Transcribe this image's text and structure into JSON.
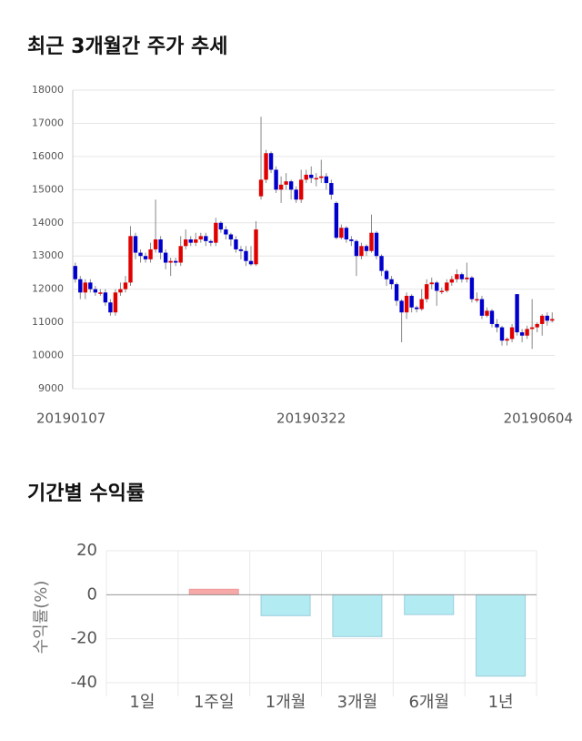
{
  "chart_data": [
    {
      "type": "candlestick",
      "title": "최근 3개월간 주가 추세",
      "categories": [
        "20190107",
        null,
        null,
        null,
        null,
        null,
        null,
        null,
        null,
        null,
        null,
        null,
        null,
        null,
        null,
        null,
        null,
        null,
        null,
        null,
        null,
        null,
        null,
        null,
        null,
        null,
        null,
        null,
        null,
        null,
        null,
        null,
        null,
        null,
        null,
        null,
        null,
        null,
        null,
        null,
        null,
        null,
        null,
        null,
        null,
        null,
        null,
        "20190322",
        null,
        null,
        null,
        null,
        null,
        null,
        null,
        null,
        null,
        null,
        null,
        null,
        null,
        null,
        null,
        null,
        null,
        null,
        null,
        null,
        null,
        null,
        null,
        null,
        null,
        null,
        null,
        null,
        null,
        null,
        null,
        null,
        null,
        null,
        null,
        null,
        null,
        null,
        null,
        null,
        null,
        null,
        null,
        null,
        null,
        null,
        null,
        "20190604"
      ],
      "open": [
        12700,
        12300,
        11900,
        12200,
        12000,
        11900,
        11900,
        11600,
        11300,
        11900,
        12000,
        12200,
        13600,
        13100,
        13000,
        12900,
        13200,
        13500,
        13100,
        12800,
        12850,
        12800,
        13300,
        13500,
        13400,
        13500,
        13600,
        13450,
        13400,
        14000,
        13800,
        13650,
        13500,
        13200,
        13150,
        12850,
        12750,
        14800,
        15300,
        16100,
        15600,
        15000,
        15150,
        15250,
        15000,
        14700,
        15300,
        15450,
        15350,
        15350,
        15400,
        15200,
        14600,
        13550,
        13850,
        13500,
        13450,
        13000,
        13300,
        13150,
        13700,
        13000,
        12550,
        12300,
        12150,
        11650,
        11300,
        11800,
        11450,
        11400,
        11700,
        12150,
        12200,
        11950,
        11950,
        12200,
        12300,
        12450,
        12300,
        12350,
        11700,
        11700,
        11200,
        11350,
        10950,
        10850,
        10450,
        10500,
        11850,
        10700,
        10600,
        10800,
        10850,
        10950,
        11200,
        11050
      ],
      "high": [
        12800,
        12400,
        12300,
        12300,
        12100,
        12000,
        12000,
        11700,
        12000,
        12200,
        12400,
        13900,
        13700,
        13200,
        13100,
        13400,
        14700,
        13600,
        13200,
        12950,
        12950,
        13600,
        13800,
        13600,
        13700,
        13700,
        13700,
        13500,
        14150,
        14050,
        13900,
        13700,
        13600,
        13300,
        13300,
        13300,
        14050,
        17200,
        16200,
        16150,
        15700,
        15400,
        15500,
        15300,
        15100,
        15600,
        15600,
        15700,
        15500,
        15900,
        15500,
        15300,
        14650,
        13950,
        13900,
        13600,
        13500,
        13400,
        13350,
        14250,
        13750,
        13050,
        12600,
        12400,
        12200,
        11700,
        11900,
        11850,
        11500,
        12000,
        12300,
        12350,
        12250,
        12050,
        12300,
        12400,
        12600,
        12500,
        12800,
        12400,
        11900,
        11800,
        11450,
        11400,
        11100,
        10900,
        10550,
        10950,
        11850,
        10800,
        10900,
        11700,
        11000,
        11250,
        11300,
        11300
      ],
      "low": [
        12200,
        11700,
        11700,
        11900,
        11800,
        11800,
        11500,
        11200,
        11200,
        11800,
        11900,
        12100,
        12900,
        12800,
        12800,
        12800,
        13100,
        12900,
        12600,
        12400,
        12700,
        12700,
        13200,
        13300,
        13300,
        13400,
        13300,
        13300,
        13300,
        13700,
        13500,
        13300,
        13100,
        12900,
        12700,
        12700,
        12700,
        14700,
        15200,
        15500,
        14900,
        14600,
        15000,
        14700,
        14600,
        14600,
        15200,
        15200,
        15100,
        15200,
        15000,
        14700,
        13500,
        13500,
        13400,
        13300,
        12400,
        12900,
        13000,
        13100,
        12900,
        12400,
        12100,
        12000,
        11500,
        10400,
        11100,
        11300,
        11300,
        11350,
        11600,
        12000,
        11500,
        11850,
        11900,
        12100,
        12200,
        12200,
        12200,
        11600,
        11600,
        11100,
        11150,
        10850,
        10700,
        10300,
        10300,
        10400,
        10600,
        10400,
        10500,
        10200,
        10700,
        10600,
        10900,
        11000
      ],
      "close": [
        12300,
        11900,
        12200,
        12000,
        11900,
        11900,
        11600,
        11300,
        11900,
        12000,
        12200,
        13600,
        13100,
        13000,
        12900,
        13200,
        13500,
        13100,
        12800,
        12850,
        12800,
        13300,
        13500,
        13400,
        13500,
        13600,
        13450,
        13400,
        14000,
        13800,
        13650,
        13500,
        13200,
        13150,
        12850,
        12750,
        13800,
        15300,
        16100,
        15600,
        15000,
        15150,
        15250,
        15000,
        14700,
        15300,
        15450,
        15350,
        15350,
        15400,
        15200,
        14850,
        13550,
        13850,
        13500,
        13450,
        13000,
        13300,
        13150,
        13700,
        13000,
        12550,
        12300,
        12150,
        11650,
        11300,
        11800,
        11450,
        11400,
        11700,
        12150,
        12200,
        11950,
        11950,
        12200,
        12300,
        12450,
        12300,
        12350,
        11700,
        11700,
        11200,
        11350,
        10950,
        10850,
        10450,
        10500,
        10850,
        10700,
        10600,
        10800,
        10850,
        10950,
        11200,
        11050,
        11100
      ],
      "up_color": "#e00000",
      "down_color": "#0000cc",
      "ylim": [
        9000,
        18000
      ],
      "yticks": [
        9000,
        10000,
        11000,
        12000,
        13000,
        14000,
        15000,
        16000,
        17000,
        18000
      ],
      "grid": true
    },
    {
      "type": "bar",
      "title": "기간별 수익률",
      "y_label": "수익률(%)",
      "categories": [
        "1일",
        "1주일",
        "1개월",
        "3개월",
        "6개월",
        "1년"
      ],
      "values": [
        0,
        2.5,
        -9.5,
        -19,
        -9,
        -37
      ],
      "positive_color": "#f7a9a8",
      "negative_color": "#b3ebf2",
      "ylim": [
        -40,
        20
      ],
      "yticks": [
        -40,
        -20,
        0,
        20
      ],
      "grid": true
    }
  ]
}
